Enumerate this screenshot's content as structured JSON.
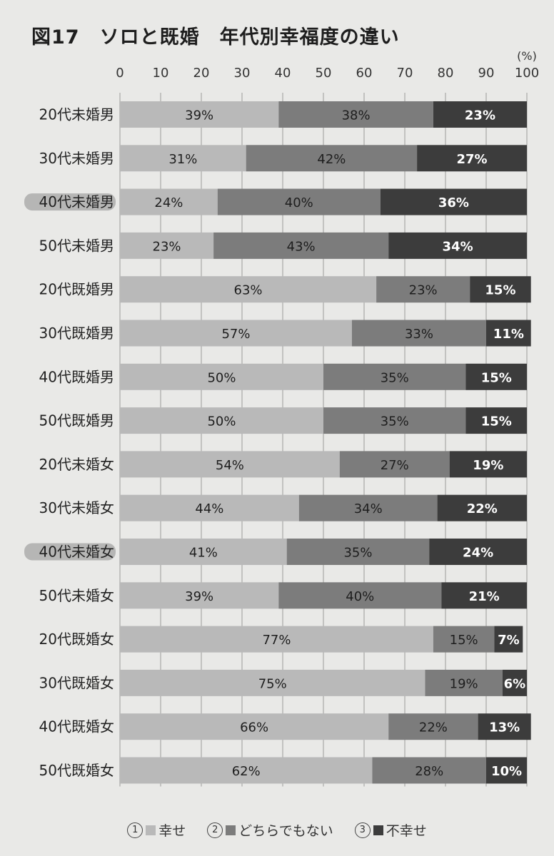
{
  "title": "図17　ソロと既婚　年代別幸福度の違い",
  "colors": {
    "happy": "#b9b9b9",
    "neutral": "#7c7c7c",
    "unhappy": "#3c3c3c",
    "grid": "#9a9a9a",
    "background": "#e9e9e7"
  },
  "legend": [
    {
      "num": "1",
      "label": "幸せ",
      "color_key": "happy"
    },
    {
      "num": "2",
      "label": "どちらでもない",
      "color_key": "neutral"
    },
    {
      "num": "3",
      "label": "不幸せ",
      "color_key": "unhappy"
    }
  ],
  "chart_data": {
    "type": "bar",
    "orientation": "horizontal",
    "stacked": true,
    "x_unit_label": "(%)",
    "xlim": [
      0,
      100
    ],
    "x_ticks": [
      0,
      10,
      20,
      30,
      40,
      50,
      60,
      70,
      80,
      90,
      100
    ],
    "grid": true,
    "legend_position": "bottom",
    "categories": [
      "20代未婚男",
      "30代未婚男",
      "40代未婚男",
      "50代未婚男",
      "20代既婚男",
      "30代既婚男",
      "40代既婚男",
      "50代既婚男",
      "20代未婚女",
      "30代未婚女",
      "40代未婚女",
      "50代未婚女",
      "20代既婚女",
      "30代既婚女",
      "40代既婚女",
      "50代既婚女"
    ],
    "highlighted": [
      "40代未婚男",
      "40代未婚女"
    ],
    "series": [
      {
        "name": "幸せ",
        "color_key": "happy",
        "values": [
          39,
          31,
          24,
          23,
          63,
          57,
          50,
          50,
          54,
          44,
          41,
          39,
          77,
          75,
          66,
          62
        ],
        "labels": [
          "39%",
          "31%",
          "24%",
          "23%",
          "63%",
          "57%",
          "50%",
          "50%",
          "54%",
          "44%",
          "41%",
          "39%",
          "77%",
          "75%",
          "66%",
          "62%"
        ]
      },
      {
        "name": "どちらでもない",
        "color_key": "neutral",
        "values": [
          38,
          42,
          40,
          43,
          23,
          33,
          35,
          35,
          27,
          34,
          35,
          40,
          15,
          19,
          22,
          28
        ],
        "labels": [
          "38%",
          "42%",
          "40%",
          "43%",
          "23%",
          "33%",
          "35%",
          "35%",
          "27%",
          "34%",
          "35%",
          "40%",
          "15%",
          "19%",
          "22%",
          "28%"
        ]
      },
      {
        "name": "不幸せ",
        "color_key": "unhappy",
        "values": [
          23,
          27,
          36,
          34,
          15,
          11,
          15,
          15,
          19,
          22,
          24,
          21,
          7,
          6,
          13,
          10
        ],
        "labels": [
          "23%",
          "27%",
          "36%",
          "34%",
          "15%",
          "11%",
          "15%",
          "15%",
          "19%",
          "22%",
          "24%",
          "21%",
          "7%",
          "6%",
          "13%",
          "10%"
        ]
      }
    ]
  }
}
